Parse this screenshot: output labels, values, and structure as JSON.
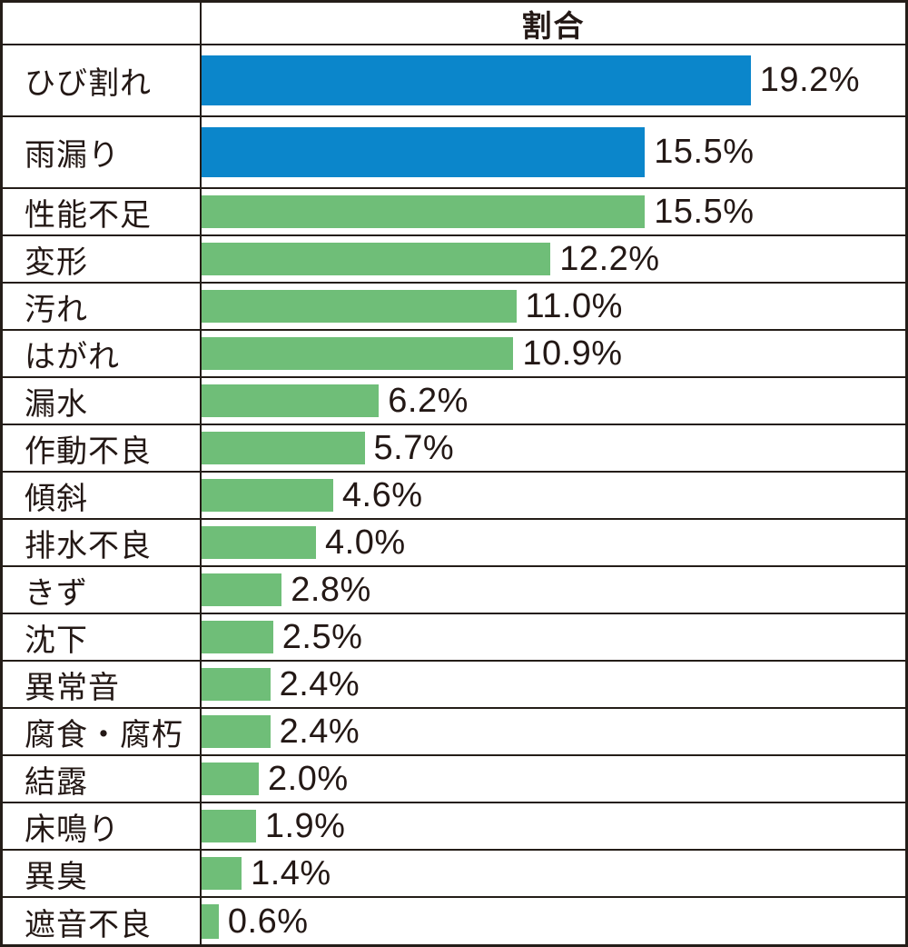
{
  "header": {
    "ratio_column_title": "割合"
  },
  "palette": {
    "highlight_blue": "#0b86cb",
    "normal_green": "#6fbe78",
    "border_dark": "#241d18",
    "text_dark": "#231815"
  },
  "chart_data": {
    "type": "bar",
    "orientation": "horizontal",
    "title": "割合",
    "xlabel": "",
    "ylabel": "",
    "xlim": [
      0,
      24.6
    ],
    "grid": false,
    "legend": "none",
    "data_labels": "outside-end",
    "categories": [
      "ひび割れ",
      "雨漏り",
      "性能不足",
      "変形",
      "汚れ",
      "はがれ",
      "漏水",
      "作動不良",
      "傾斜",
      "排水不良",
      "きず",
      "沈下",
      "異常音",
      "腐食・腐朽",
      "結露",
      "床鳴り",
      "異臭",
      "遮音不良"
    ],
    "values": [
      19.2,
      15.5,
      15.5,
      12.2,
      11.0,
      10.9,
      6.2,
      5.7,
      4.6,
      4.0,
      2.8,
      2.5,
      2.4,
      2.4,
      2.0,
      1.9,
      1.4,
      0.6
    ],
    "value_labels": [
      "19.2%",
      "15.5%",
      "15.5%",
      "12.2%",
      "11.0%",
      "10.9%",
      "6.2%",
      "5.7%",
      "4.6%",
      "4.0%",
      "2.8%",
      "2.5%",
      "2.4%",
      "2.4%",
      "2.0%",
      "1.9%",
      "1.4%",
      "0.6%"
    ],
    "bar_colors": [
      "#0b86cb",
      "#0b86cb",
      "#6fbe78",
      "#6fbe78",
      "#6fbe78",
      "#6fbe78",
      "#6fbe78",
      "#6fbe78",
      "#6fbe78",
      "#6fbe78",
      "#6fbe78",
      "#6fbe78",
      "#6fbe78",
      "#6fbe78",
      "#6fbe78",
      "#6fbe78",
      "#6fbe78",
      "#6fbe78"
    ]
  }
}
